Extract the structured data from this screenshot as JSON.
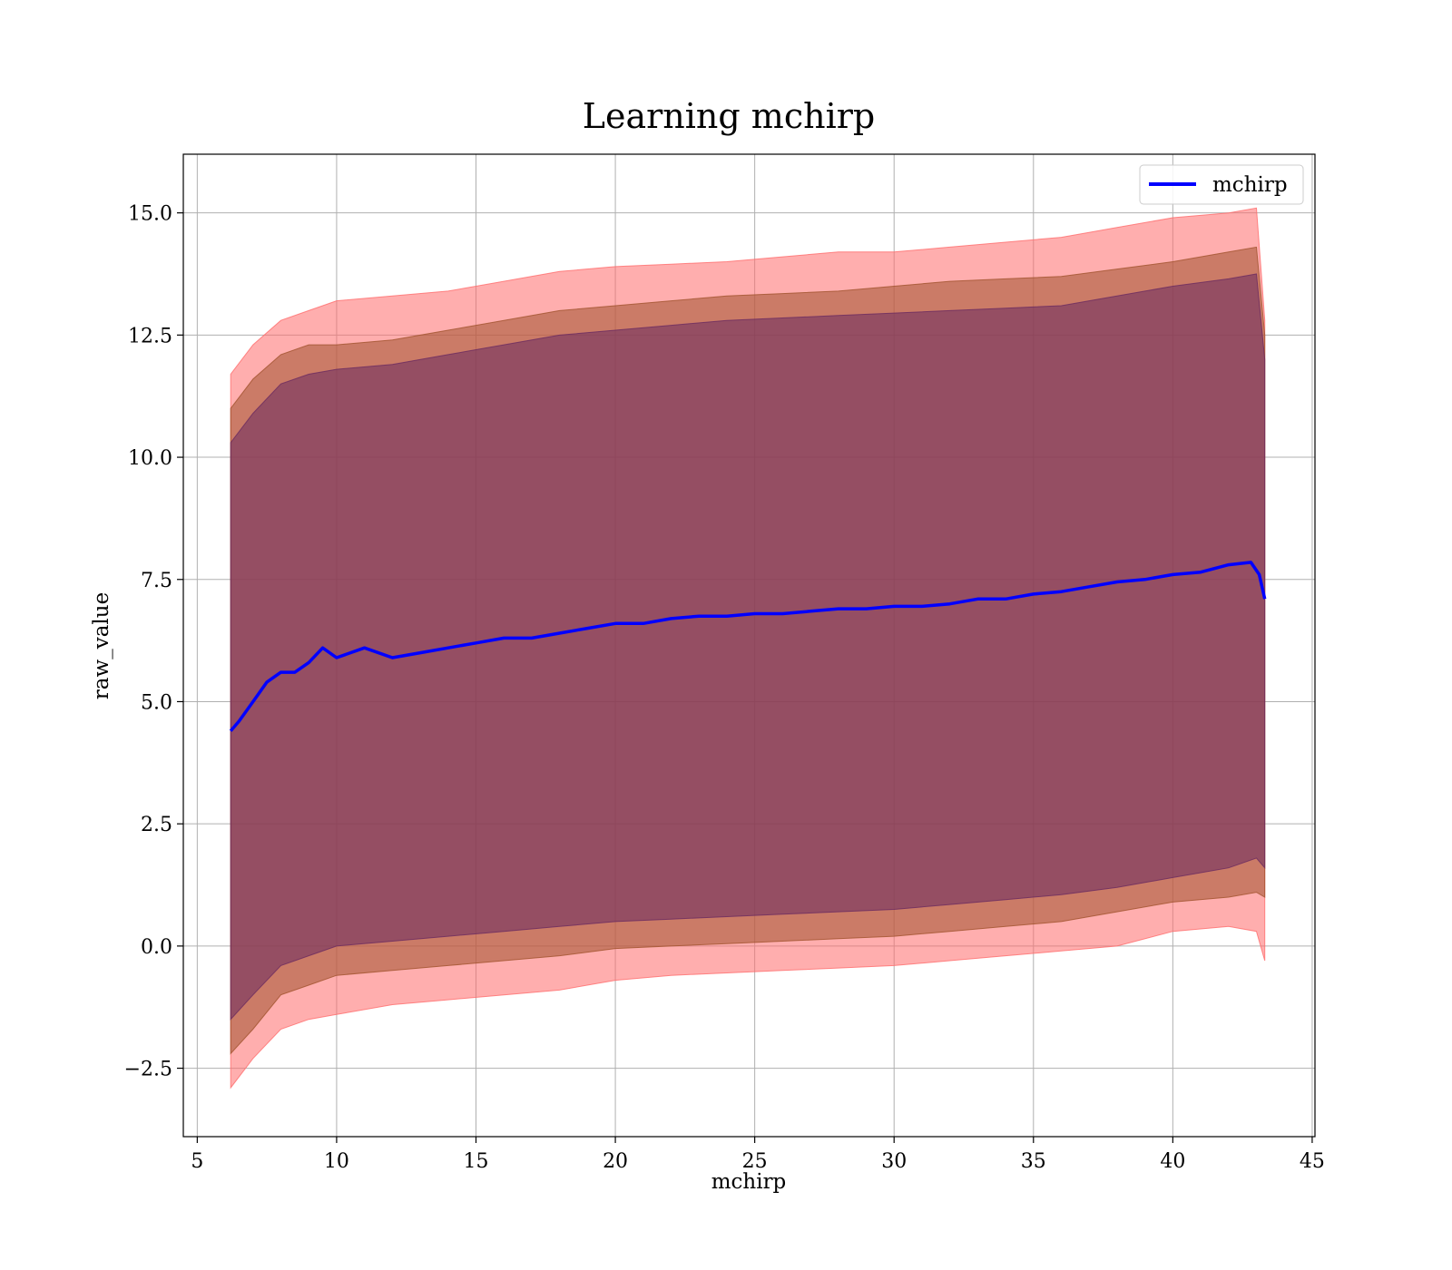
{
  "chart_data": {
    "type": "line",
    "title": "Learning mchirp",
    "xlabel": "mchirp",
    "ylabel": "raw_value",
    "xlim": [
      4.5,
      45.1
    ],
    "ylim": [
      -3.9,
      16.2
    ],
    "xticks": [
      5,
      10,
      15,
      20,
      25,
      30,
      35,
      40,
      45
    ],
    "xtick_labels": [
      "5",
      "10",
      "15",
      "20",
      "25",
      "30",
      "35",
      "40",
      "45"
    ],
    "yticks": [
      -2.5,
      0.0,
      2.5,
      5.0,
      7.5,
      10.0,
      12.5,
      15.0
    ],
    "ytick_labels": [
      "−2.5",
      "0.0",
      "2.5",
      "5.0",
      "7.5",
      "10.0",
      "12.5",
      "15.0"
    ],
    "grid": true,
    "legend": {
      "position": "upper right",
      "entries": [
        "mchirp"
      ]
    },
    "colors": {
      "line": "#0000ff",
      "band_outer": "#ff6b6b",
      "band_middle": "#a0522d",
      "band_inner": "#6a2a60"
    },
    "series": [
      {
        "name": "mchirp",
        "x": [
          6.2,
          6.5,
          7.0,
          7.5,
          8.0,
          8.5,
          9.0,
          9.5,
          10.0,
          11.0,
          12.0,
          13.0,
          14.0,
          15.0,
          16.0,
          17.0,
          18.0,
          19.0,
          20.0,
          21.0,
          22.0,
          23.0,
          24.0,
          25.0,
          26.0,
          27.0,
          28.0,
          29.0,
          30.0,
          31.0,
          32.0,
          33.0,
          34.0,
          35.0,
          36.0,
          37.0,
          38.0,
          39.0,
          40.0,
          41.0,
          42.0,
          42.8,
          43.1,
          43.3
        ],
        "y": [
          4.4,
          4.6,
          5.0,
          5.4,
          5.6,
          5.6,
          5.8,
          6.1,
          5.9,
          6.1,
          5.9,
          6.0,
          6.1,
          6.2,
          6.3,
          6.3,
          6.4,
          6.5,
          6.6,
          6.6,
          6.7,
          6.75,
          6.75,
          6.8,
          6.8,
          6.85,
          6.9,
          6.9,
          6.95,
          6.95,
          7.0,
          7.1,
          7.1,
          7.2,
          7.25,
          7.35,
          7.45,
          7.5,
          7.6,
          7.65,
          7.8,
          7.85,
          7.6,
          7.1
        ]
      }
    ],
    "bands": [
      {
        "level": "outer",
        "x": [
          6.2,
          7.0,
          8.0,
          9.0,
          10.0,
          12.0,
          14.0,
          16.0,
          18.0,
          20.0,
          22.0,
          24.0,
          26.0,
          28.0,
          30.0,
          32.0,
          34.0,
          36.0,
          38.0,
          40.0,
          42.0,
          43.0,
          43.3
        ],
        "upper": [
          11.7,
          12.3,
          12.8,
          13.0,
          13.2,
          13.3,
          13.4,
          13.6,
          13.8,
          13.9,
          13.95,
          14.0,
          14.1,
          14.2,
          14.2,
          14.3,
          14.4,
          14.5,
          14.7,
          14.9,
          15.0,
          15.1,
          12.8
        ],
        "lower": [
          -2.9,
          -2.3,
          -1.7,
          -1.5,
          -1.4,
          -1.2,
          -1.1,
          -1.0,
          -0.9,
          -0.7,
          -0.6,
          -0.55,
          -0.5,
          -0.45,
          -0.4,
          -0.3,
          -0.2,
          -0.1,
          0.0,
          0.3,
          0.4,
          0.3,
          -0.3
        ]
      },
      {
        "level": "middle",
        "x": [
          6.2,
          7.0,
          8.0,
          9.0,
          10.0,
          12.0,
          14.0,
          16.0,
          18.0,
          20.0,
          22.0,
          24.0,
          26.0,
          28.0,
          30.0,
          32.0,
          34.0,
          36.0,
          38.0,
          40.0,
          42.0,
          43.0,
          43.3
        ],
        "upper": [
          11.0,
          11.6,
          12.1,
          12.3,
          12.3,
          12.4,
          12.6,
          12.8,
          13.0,
          13.1,
          13.2,
          13.3,
          13.35,
          13.4,
          13.5,
          13.6,
          13.65,
          13.7,
          13.85,
          14.0,
          14.2,
          14.3,
          12.5
        ],
        "lower": [
          -2.2,
          -1.7,
          -1.0,
          -0.8,
          -0.6,
          -0.5,
          -0.4,
          -0.3,
          -0.2,
          -0.05,
          0.0,
          0.05,
          0.1,
          0.15,
          0.2,
          0.3,
          0.4,
          0.5,
          0.7,
          0.9,
          1.0,
          1.1,
          1.0
        ]
      },
      {
        "level": "inner",
        "x": [
          6.2,
          7.0,
          8.0,
          9.0,
          10.0,
          12.0,
          14.0,
          16.0,
          18.0,
          20.0,
          22.0,
          24.0,
          26.0,
          28.0,
          30.0,
          32.0,
          34.0,
          36.0,
          38.0,
          40.0,
          42.0,
          43.0,
          43.3
        ],
        "upper": [
          10.3,
          10.9,
          11.5,
          11.7,
          11.8,
          11.9,
          12.1,
          12.3,
          12.5,
          12.6,
          12.7,
          12.8,
          12.85,
          12.9,
          12.95,
          13.0,
          13.05,
          13.1,
          13.3,
          13.5,
          13.65,
          13.75,
          12.0
        ],
        "lower": [
          -1.5,
          -1.0,
          -0.4,
          -0.2,
          0.0,
          0.1,
          0.2,
          0.3,
          0.4,
          0.5,
          0.55,
          0.6,
          0.65,
          0.7,
          0.75,
          0.85,
          0.95,
          1.05,
          1.2,
          1.4,
          1.6,
          1.8,
          1.6
        ]
      }
    ]
  }
}
